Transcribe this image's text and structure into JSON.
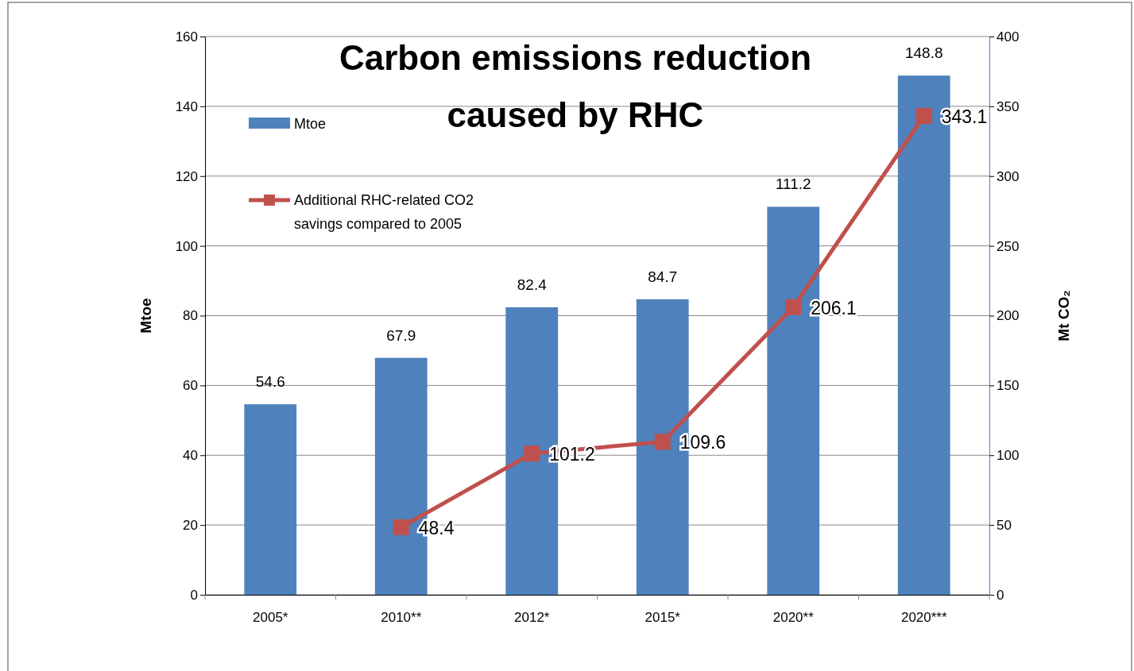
{
  "chart_data": {
    "type": "bar",
    "title": "Carbon  emissions reduction caused by RHC",
    "ylabel": "Mtoe",
    "y2label": "Mt CO₂",
    "categories": [
      "2005*",
      "2010**",
      "2012*",
      "2015*",
      "2020**",
      "2020***"
    ],
    "series": [
      {
        "name": "Mtoe",
        "color": "#4f81bd",
        "values": [
          54.6,
          67.9,
          82.4,
          84.7,
          111.2,
          148.8
        ]
      },
      {
        "name": "Additional RHC-related CO2 savings compared to 2005",
        "type": "line",
        "axis": "y2",
        "color": "#c0504d",
        "marker": "square",
        "values": [
          null,
          48.4,
          101.2,
          109.6,
          206.1,
          343.1
        ]
      }
    ],
    "ylim": [
      0,
      160
    ],
    "yticks": [
      0,
      20,
      40,
      60,
      80,
      100,
      120,
      140,
      160
    ],
    "y2lim": [
      0,
      400
    ],
    "y2ticks": [
      0,
      50,
      100,
      150,
      200,
      250,
      300,
      350,
      400
    ],
    "grid": "y",
    "legend": "top left",
    "data_labels": true
  }
}
